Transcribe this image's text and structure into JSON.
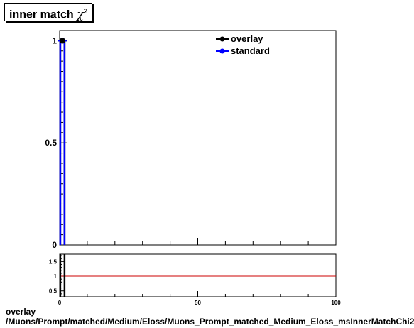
{
  "title": {
    "text": "inner match",
    "symbol": "χ",
    "exponent": "2"
  },
  "footer": {
    "line1": "overlay",
    "line2": "/Muons/Prompt/matched/Medium/Eloss/Muons_Prompt_matched_Medium_Eloss_msInnerMatchChi2"
  },
  "colors": {
    "overlay": "#000000",
    "standard": "#0000ff",
    "ratio_line": "#cc0000"
  },
  "chart_data": [
    {
      "type": "line",
      "name": "main",
      "xlim": [
        0,
        100
      ],
      "ylim": [
        0,
        1.05
      ],
      "yticks": [
        {
          "value": 0,
          "label": "0"
        },
        {
          "value": 0.5,
          "label": "0.5"
        },
        {
          "value": 1,
          "label": "1"
        }
      ],
      "legend": {
        "position": "top-right"
      },
      "series": [
        {
          "name": "overlay",
          "color": "#000000",
          "marker": "filled-circle",
          "x": [
            1
          ],
          "y": [
            1
          ]
        },
        {
          "name": "standard",
          "color": "#0000ff",
          "marker": "filled-circle",
          "x": [
            1
          ],
          "y": [
            1
          ]
        }
      ]
    },
    {
      "type": "line",
      "name": "ratio",
      "xlim": [
        0,
        100
      ],
      "ylim": [
        0.3,
        1.75
      ],
      "xticks": [
        {
          "value": 0,
          "label": "0"
        },
        {
          "value": 50,
          "label": "50"
        },
        {
          "value": 100,
          "label": "100"
        }
      ],
      "yticks": [
        {
          "value": 0.5,
          "label": "0.5"
        },
        {
          "value": 1,
          "label": "1"
        },
        {
          "value": 1.5,
          "label": "1.5"
        }
      ],
      "reference_line": 1,
      "series": [
        {
          "name": "ratio",
          "color": "#cc0000",
          "x": [
            0,
            100
          ],
          "y": [
            1,
            1
          ]
        }
      ]
    }
  ]
}
